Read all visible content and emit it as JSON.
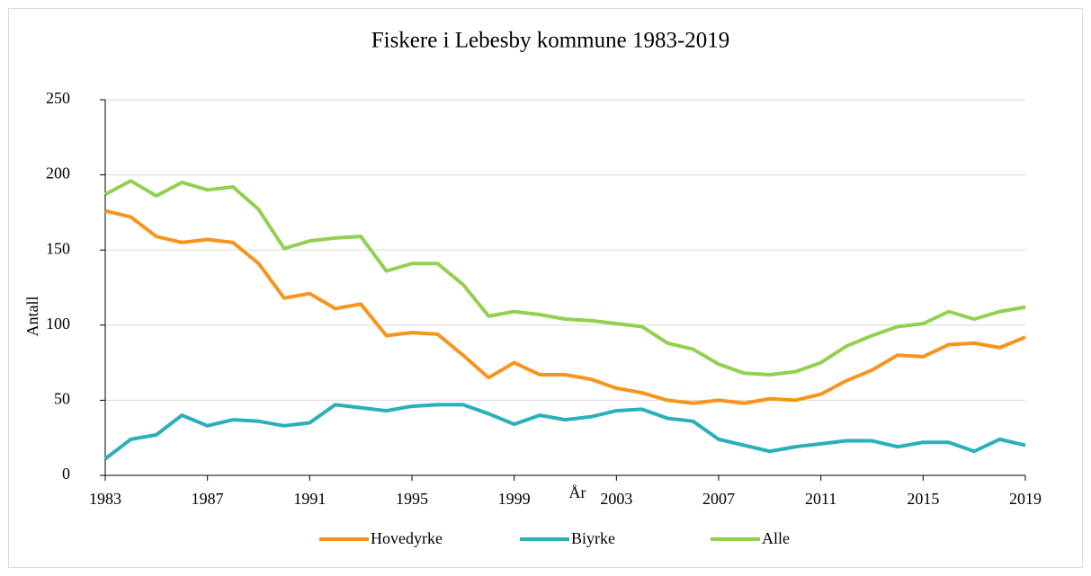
{
  "chart_data": {
    "type": "line",
    "title": "Fiskere i Lebesby kommune 1983-2019",
    "x_label": "År",
    "y_label": "Antall",
    "x": [
      1983,
      1984,
      1985,
      1986,
      1987,
      1988,
      1989,
      1990,
      1991,
      1992,
      1993,
      1994,
      1995,
      1996,
      1997,
      1998,
      1999,
      2000,
      2001,
      2002,
      2003,
      2004,
      2005,
      2006,
      2007,
      2008,
      2009,
      2010,
      2011,
      2012,
      2013,
      2014,
      2015,
      2016,
      2017,
      2018,
      2019
    ],
    "series": [
      {
        "name": "Hovedyrke",
        "color": "#f7941d",
        "values": [
          176,
          172,
          159,
          155,
          157,
          155,
          141,
          118,
          121,
          111,
          114,
          93,
          95,
          94,
          80,
          65,
          75,
          67,
          67,
          64,
          58,
          55,
          50,
          48,
          50,
          48,
          51,
          50,
          54,
          63,
          70,
          80,
          79,
          87,
          88,
          85,
          92
        ]
      },
      {
        "name": "Biyrke",
        "color": "#2ab0b8",
        "values": [
          11,
          24,
          27,
          40,
          33,
          37,
          36,
          33,
          35,
          47,
          45,
          43,
          46,
          47,
          47,
          41,
          34,
          40,
          37,
          39,
          43,
          44,
          38,
          36,
          24,
          20,
          16,
          19,
          21,
          23,
          23,
          19,
          22,
          22,
          16,
          24,
          20
        ]
      },
      {
        "name": "Alle",
        "color": "#92d050",
        "values": [
          187,
          196,
          186,
          195,
          190,
          192,
          177,
          151,
          156,
          158,
          159,
          136,
          141,
          141,
          127,
          106,
          109,
          107,
          104,
          103,
          101,
          99,
          88,
          84,
          74,
          68,
          67,
          69,
          75,
          86,
          93,
          99,
          101,
          109,
          104,
          109,
          112
        ]
      }
    ],
    "xlim": [
      1983,
      2019
    ],
    "xticks": [
      1983,
      1987,
      1991,
      1995,
      1999,
      2003,
      2007,
      2011,
      2015,
      2019
    ],
    "ylim": [
      0,
      250
    ],
    "yticks": [
      0,
      50,
      100,
      150,
      200,
      250
    ],
    "grid": true,
    "legend": "bottom"
  }
}
